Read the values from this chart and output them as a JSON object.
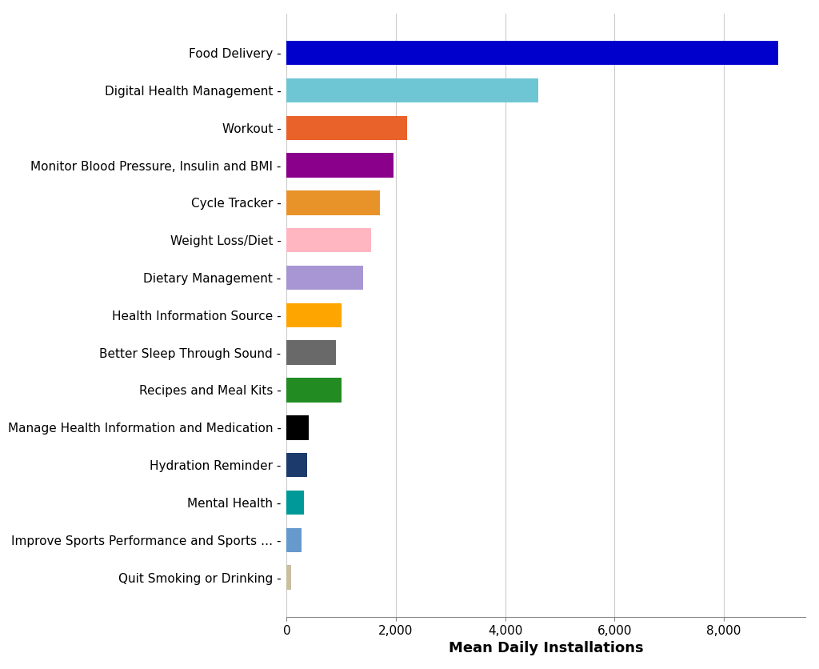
{
  "categories": [
    "Food Delivery",
    "Digital Health Management",
    "Workout",
    "Monitor Blood Pressure, Insulin and BMI",
    "Cycle Tracker",
    "Weight Loss/Diet",
    "Dietary Management",
    "Health Information Source",
    "Better Sleep Through Sound",
    "Recipes and Meal Kits",
    "Manage Health Information and Medication",
    "Hydration Reminder",
    "Mental Health",
    "Improve Sports Performance and Sports …",
    "Quit Smoking or Drinking"
  ],
  "values": [
    9000,
    4600,
    2200,
    1950,
    1700,
    1550,
    1400,
    1000,
    900,
    1000,
    400,
    380,
    320,
    270,
    80
  ],
  "colors": [
    "#0000CC",
    "#6EC6D4",
    "#E8622A",
    "#8B008B",
    "#E8922A",
    "#FFB6C1",
    "#A895D4",
    "#FFA500",
    "#696969",
    "#228B22",
    "#000000",
    "#1C3A6B",
    "#009999",
    "#6699CC",
    "#C8BFA0"
  ],
  "xlabel": "Mean Daily Installations",
  "xlim": [
    0,
    9500
  ],
  "background_color": "#FFFFFF",
  "grid_color": "#CCCCCC",
  "label_fontsize": 13,
  "tick_fontsize": 11,
  "ylabel_fontsize": 13
}
